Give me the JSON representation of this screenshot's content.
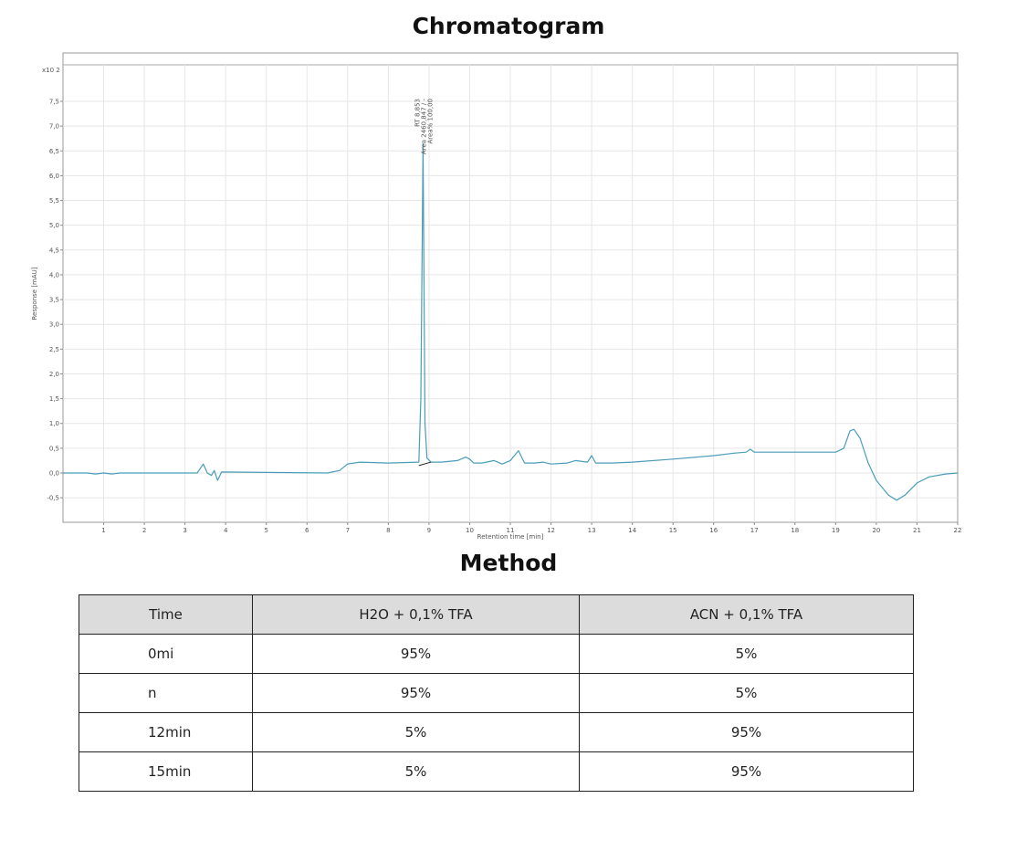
{
  "titles": {
    "chart": "Chromatogram",
    "method": "Method"
  },
  "chart_data": {
    "type": "line",
    "xlabel": "Retention time [min]",
    "ylabel": "Response [mAU]",
    "y_multiplier_label": "x10 2",
    "xlim": [
      0,
      22
    ],
    "ylim": [
      -1.0,
      8.5
    ],
    "x_ticks": [
      "1",
      "2",
      "3",
      "4",
      "5",
      "6",
      "7",
      "8",
      "9",
      "10",
      "11",
      "12",
      "13",
      "14",
      "15",
      "16",
      "17",
      "18",
      "19",
      "20",
      "21",
      "22"
    ],
    "y_ticks": [
      "7,5",
      "7,0",
      "6,5",
      "6,0",
      "5,5",
      "5,0",
      "4,5",
      "4,0",
      "3,5",
      "3,0",
      "2,5",
      "2,0",
      "1,5",
      "1,0",
      "0,5",
      "0,0",
      "-0,5"
    ],
    "y_tick_values": [
      7.5,
      7.0,
      6.5,
      6.0,
      5.5,
      5.0,
      4.5,
      4.0,
      3.5,
      3.0,
      2.5,
      2.0,
      1.5,
      1.0,
      0.5,
      0.0,
      -0.5
    ],
    "grid": true,
    "line_color": "#4a9cb8",
    "peak_annotation": {
      "x": 8.853,
      "lines": [
        "RT 8,853",
        "Area 2460,847 / -",
        "Area% 100,00"
      ]
    },
    "series": [
      {
        "x": [
          0,
          0.6,
          0.8,
          1.0,
          1.2,
          1.4,
          3.3,
          3.45,
          3.55,
          3.65,
          3.72,
          3.8,
          3.9,
          6.5,
          6.8,
          7.0,
          7.3,
          8.0,
          8.75,
          8.8,
          8.853,
          8.9,
          8.95,
          9.05,
          9.3,
          9.7,
          9.9,
          10.0,
          10.1,
          10.3,
          10.6,
          10.8,
          11.0,
          11.2,
          11.35,
          11.6,
          11.8,
          12.0,
          12.4,
          12.6,
          12.9,
          13.0,
          13.1,
          13.5,
          14.0,
          15.0,
          16.0,
          16.5,
          16.8,
          16.9,
          17.0,
          18.0,
          19.0,
          19.2,
          19.35,
          19.45,
          19.6,
          19.8,
          20.0,
          20.3,
          20.5,
          20.7,
          21.0,
          21.3,
          21.7,
          22.0
        ],
        "y": [
          0.0,
          0.0,
          -0.02,
          0.0,
          -0.02,
          0.0,
          0.0,
          0.18,
          0.0,
          -0.05,
          0.05,
          -0.15,
          0.02,
          0.0,
          0.05,
          0.18,
          0.22,
          0.2,
          0.22,
          1.5,
          6.65,
          1.0,
          0.3,
          0.22,
          0.22,
          0.25,
          0.32,
          0.28,
          0.2,
          0.2,
          0.25,
          0.18,
          0.25,
          0.45,
          0.2,
          0.2,
          0.22,
          0.18,
          0.2,
          0.25,
          0.22,
          0.35,
          0.2,
          0.2,
          0.22,
          0.28,
          0.35,
          0.4,
          0.42,
          0.48,
          0.42,
          0.42,
          0.42,
          0.5,
          0.85,
          0.88,
          0.7,
          0.2,
          -0.15,
          -0.45,
          -0.55,
          -0.45,
          -0.2,
          -0.08,
          -0.02,
          0.0
        ]
      }
    ]
  },
  "method_table": {
    "headers": [
      "Time",
      "H2O + 0,1% TFA",
      "ACN + 0,1% TFA"
    ],
    "rows": [
      [
        "0mi",
        "95%",
        "5%"
      ],
      [
        "n",
        "95%",
        "5%"
      ],
      [
        "12min",
        "5%",
        "95%"
      ],
      [
        "15min",
        "5%",
        "95%"
      ]
    ]
  }
}
